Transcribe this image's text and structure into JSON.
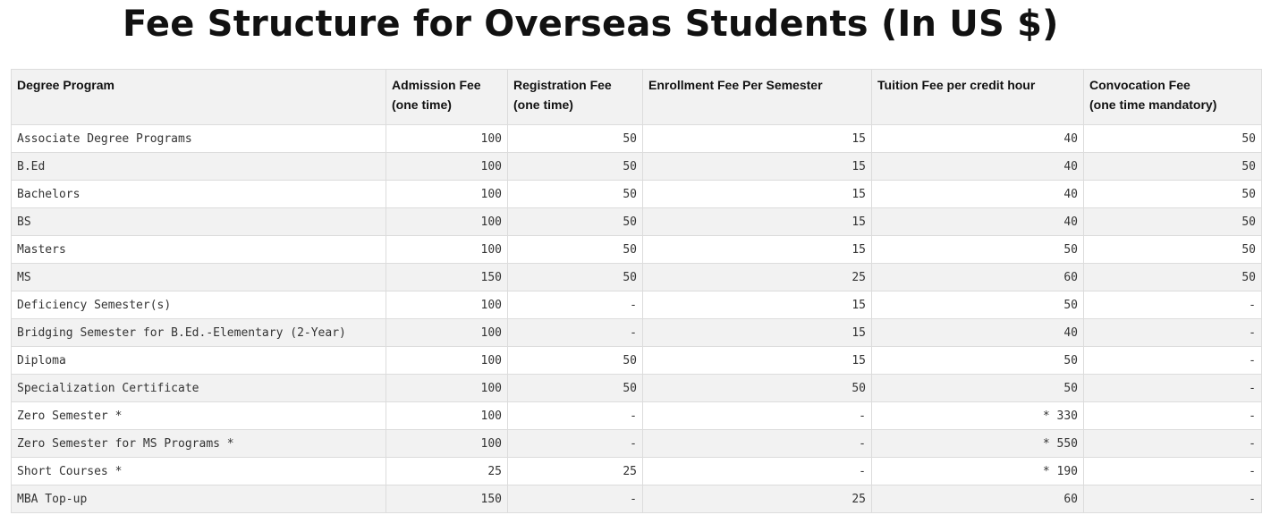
{
  "title": "Fee Structure for Overseas Students (In US $)",
  "table": {
    "headers": [
      [
        "Degree Program"
      ],
      [
        "Admission Fee",
        "(one time)"
      ],
      [
        "Registration Fee",
        "(one time)"
      ],
      [
        "Enrollment Fee Per Semester"
      ],
      [
        "Tuition Fee per credit hour"
      ],
      [
        "Convocation Fee",
        "(one time mandatory)"
      ]
    ],
    "rows": [
      [
        "Associate Degree Programs",
        100,
        50,
        15,
        40,
        50
      ],
      [
        "B.Ed",
        100,
        50,
        15,
        40,
        50
      ],
      [
        "Bachelors",
        100,
        50,
        15,
        40,
        50
      ],
      [
        "BS",
        100,
        50,
        15,
        40,
        50
      ],
      [
        "Masters",
        100,
        50,
        15,
        50,
        50
      ],
      [
        "MS",
        150,
        50,
        25,
        60,
        50
      ],
      [
        "Deficiency Semester(s)",
        100,
        "-",
        15,
        50,
        "-"
      ],
      [
        "Bridging Semester for B.Ed.-Elementary (2-Year)",
        100,
        "-",
        15,
        40,
        "-"
      ],
      [
        "Diploma",
        100,
        50,
        15,
        50,
        "-"
      ],
      [
        "Specialization Certificate",
        100,
        50,
        50,
        50,
        "-"
      ],
      [
        "Zero Semester *",
        100,
        "-",
        "-",
        "* 330",
        "-"
      ],
      [
        "Zero Semester for MS Programs *",
        100,
        "-",
        "-",
        "* 550",
        "-"
      ],
      [
        "Short Courses *",
        25,
        25,
        "-",
        "* 190",
        "-"
      ],
      [
        "MBA Top-up",
        150,
        "-",
        25,
        60,
        "-"
      ]
    ]
  }
}
